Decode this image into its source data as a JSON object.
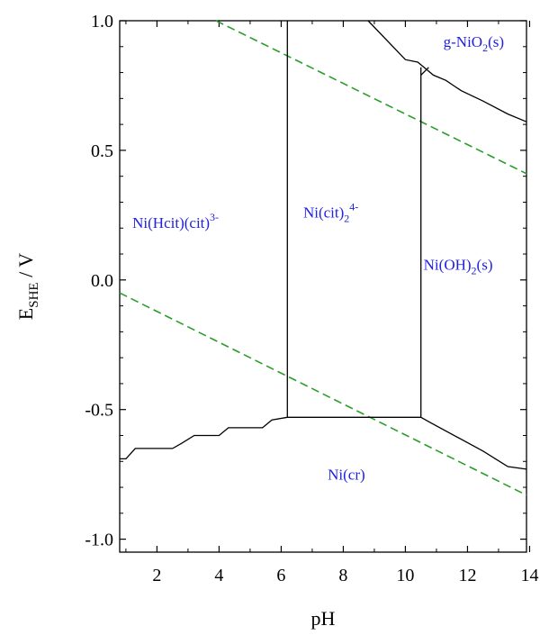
{
  "chart_data": {
    "type": "line",
    "title": "",
    "xlabel": "pH",
    "ylabel": {
      "main": "E",
      "sub": "SHE",
      "unit": " / V"
    },
    "xlim": [
      0.8,
      13.9
    ],
    "ylim": [
      -1.05,
      1.0
    ],
    "xticks": [
      2,
      4,
      6,
      8,
      10,
      12,
      14
    ],
    "xtick_labels": [
      "2",
      "4",
      "6",
      "8",
      "10",
      "12",
      "14"
    ],
    "yticks": [
      1.0,
      0.5,
      0.0,
      -0.5,
      -1.0
    ],
    "ytick_labels": [
      "1.0",
      "0.5",
      "0.0",
      "-0.5",
      "-1.0"
    ],
    "grid": false,
    "colors": {
      "boundary": "#000000",
      "water": "#2a9d2a",
      "label": "#2020e0"
    },
    "series": [
      {
        "name": "water-stability-upper",
        "style": "dashed",
        "color": "#2a9d2a",
        "x": [
          3.9,
          13.9
        ],
        "y": [
          1.0,
          0.41
        ]
      },
      {
        "name": "water-stability-lower",
        "style": "dashed",
        "color": "#2a9d2a",
        "x": [
          0.8,
          13.9
        ],
        "y": [
          -0.05,
          -0.83
        ]
      },
      {
        "name": "ni-metal-boundary",
        "style": "solid",
        "color": "#000000",
        "x": [
          0.8,
          1.0,
          1.3,
          2.5,
          2.8,
          3.2,
          4.0,
          4.3,
          5.4,
          5.7,
          6.2,
          10.5,
          10.8,
          12.5,
          12.9,
          13.3,
          13.9
        ],
        "y": [
          -0.69,
          -0.69,
          -0.65,
          -0.65,
          -0.63,
          -0.6,
          -0.6,
          -0.57,
          -0.57,
          -0.54,
          -0.53,
          -0.53,
          -0.55,
          -0.66,
          -0.69,
          -0.72,
          -0.73
        ]
      },
      {
        "name": "cit-hcit-boundary",
        "style": "solid",
        "color": "#000000",
        "x": [
          6.2,
          6.2
        ],
        "y": [
          -0.53,
          1.0
        ]
      },
      {
        "name": "cit-hydroxide-boundary",
        "style": "solid",
        "color": "#000000",
        "x": [
          10.5,
          10.5
        ],
        "y": [
          -0.53,
          0.82
        ]
      },
      {
        "name": "nio2-boundary",
        "style": "solid",
        "color": "#000000",
        "x": [
          8.8,
          10.0,
          10.4,
          10.9,
          11.3,
          11.8,
          12.5,
          13.3,
          13.9
        ],
        "y": [
          1.0,
          0.85,
          0.84,
          0.79,
          0.77,
          0.73,
          0.69,
          0.64,
          0.61
        ]
      },
      {
        "name": "nio2-tick",
        "style": "solid",
        "color": "#000000",
        "x": [
          10.5,
          10.75
        ],
        "y": [
          0.79,
          0.82
        ]
      }
    ],
    "annotations": [
      {
        "text": "Ni(Hcit)(cit)",
        "sup": "3-",
        "sub": "",
        "x": 2.6,
        "y": 0.2
      },
      {
        "text": "Ni(cit)",
        "sub": "2",
        "sup": "4-",
        "x": 7.6,
        "y": 0.24
      },
      {
        "text": "Ni(OH)",
        "sub": "2",
        "sup": "",
        "suffix": "(s)",
        "x": 11.7,
        "y": 0.04
      },
      {
        "text": "g-NiO",
        "sub": "2",
        "sup": "",
        "suffix": "(s)",
        "x": 12.2,
        "y": 0.9
      },
      {
        "text": "Ni(cr)",
        "sub": "",
        "sup": "",
        "x": 8.1,
        "y": -0.77
      }
    ]
  }
}
